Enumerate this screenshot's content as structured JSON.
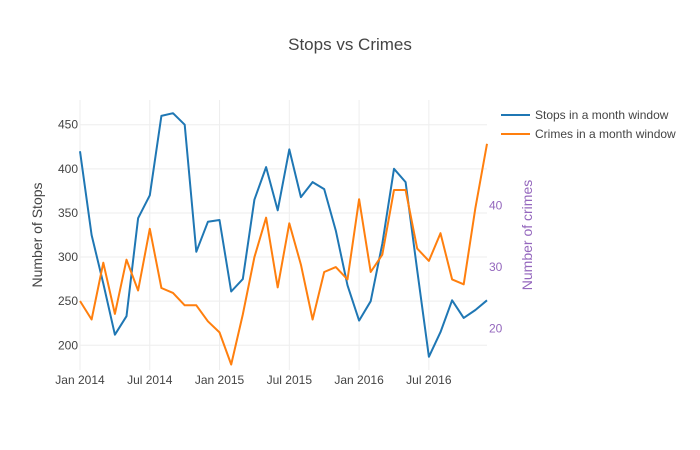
{
  "chart_data": {
    "type": "line",
    "title": "Stops vs Crimes",
    "xlabel": "",
    "ylabel": "Number of Stops",
    "y2label": "Number of crimes",
    "x_ticks": [
      "Jan 2014",
      "Jul 2014",
      "Jan 2015",
      "Jul 2015",
      "Jan 2016",
      "Jul 2016"
    ],
    "x_tick_months": [
      0,
      6,
      12,
      18,
      24,
      30
    ],
    "x": [
      "2014-01",
      "2014-02",
      "2014-03",
      "2014-04",
      "2014-05",
      "2014-06",
      "2014-07",
      "2014-08",
      "2014-09",
      "2014-10",
      "2014-11",
      "2014-12",
      "2015-01",
      "2015-02",
      "2015-03",
      "2015-04",
      "2015-05",
      "2015-06",
      "2015-07",
      "2015-08",
      "2015-09",
      "2015-10",
      "2015-11",
      "2015-12",
      "2016-01",
      "2016-02",
      "2016-03",
      "2016-04",
      "2016-05",
      "2016-06",
      "2016-07",
      "2016-08",
      "2016-09",
      "2016-10",
      "2016-11",
      "2016-12"
    ],
    "y_ticks": [
      200,
      250,
      300,
      350,
      400,
      450
    ],
    "y2_ticks": [
      20,
      30,
      40
    ],
    "ylim": [
      172,
      478
    ],
    "y2lim": [
      13.3,
      57.1
    ],
    "series": [
      {
        "name": "Stops in a month window",
        "color": "#1f77b4",
        "axis": "y",
        "values": [
          420,
          325,
          270,
          212,
          233,
          344,
          370,
          460,
          463,
          450,
          306,
          340,
          342,
          261,
          275,
          365,
          402,
          353,
          422,
          368,
          385,
          377,
          330,
          268,
          228,
          250,
          315,
          400,
          385,
          285,
          187,
          215,
          251,
          231,
          240,
          251
        ]
      },
      {
        "name": "Crimes in a month window",
        "color": "#ff7f0e",
        "axis": "y2",
        "values": [
          24.5,
          21.5,
          30.7,
          22.4,
          31.2,
          26.2,
          36.2,
          26.6,
          25.8,
          23.8,
          23.8,
          21.2,
          19.4,
          14.2,
          22.3,
          31.6,
          38.0,
          26.7,
          37.1,
          30.4,
          21.5,
          29.2,
          30.0,
          28.0,
          41.0,
          29.2,
          32.0,
          42.5,
          42.5,
          33.0,
          31.0,
          35.5,
          28.0,
          27.2,
          39.6,
          50.0
        ]
      }
    ],
    "grid": true,
    "legend": "top-right"
  }
}
